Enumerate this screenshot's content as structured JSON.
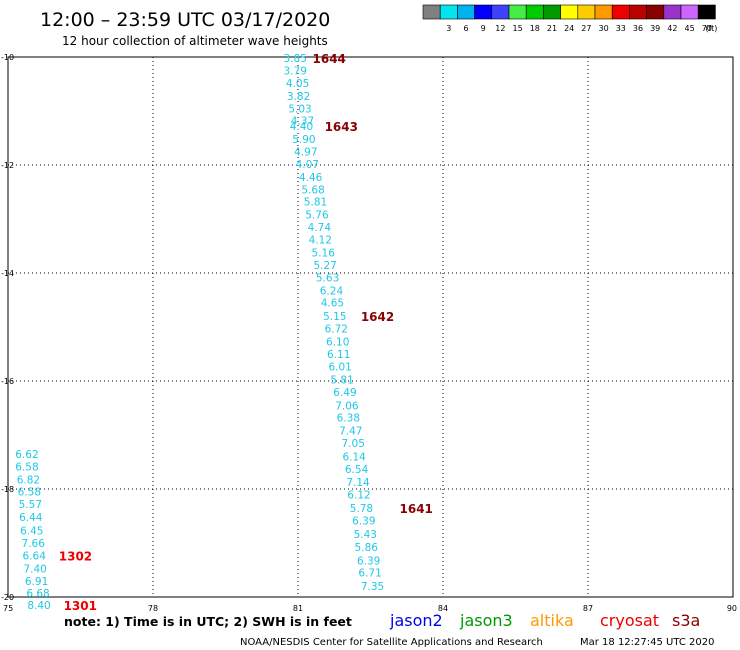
{
  "header": {
    "title": "12:00 – 23:59 UTC 03/17/2020",
    "subtitle": "12 hour collection of altimeter wave heights"
  },
  "color_legend": {
    "unit": "(ft)",
    "bins": [
      {
        "label": "",
        "color": "#808080"
      },
      {
        "label": "3",
        "color": "#00e5ee"
      },
      {
        "label": "6",
        "color": "#00b2ee"
      },
      {
        "label": "9",
        "color": "#0000ff"
      },
      {
        "label": "12",
        "color": "#4040ff"
      },
      {
        "label": "15",
        "color": "#44ee44"
      },
      {
        "label": "18",
        "color": "#00cd00"
      },
      {
        "label": "21",
        "color": "#009900"
      },
      {
        "label": "24",
        "color": "#ffff00"
      },
      {
        "label": "27",
        "color": "#ffcc00"
      },
      {
        "label": "30",
        "color": "#ff9900"
      },
      {
        "label": "33",
        "color": "#ee0000"
      },
      {
        "label": "36",
        "color": "#bb0000"
      },
      {
        "label": "39",
        "color": "#880000"
      },
      {
        "label": "42",
        "color": "#9933cc"
      },
      {
        "label": "45",
        "color": "#cc66ff"
      },
      {
        "label": "70",
        "color": "#000000"
      }
    ]
  },
  "chart_data": {
    "type": "scatter",
    "xlim": [
      75,
      90
    ],
    "ylim": [
      -20,
      -10
    ],
    "x_ticks": [
      "75",
      "78",
      "81",
      "84",
      "87",
      "90"
    ],
    "y_ticks": [
      "-10",
      "-12",
      "-14",
      "-16",
      "-18",
      "-20"
    ],
    "x_tick_values": [
      75,
      78,
      81,
      84,
      87,
      90
    ],
    "y_tick_values": [
      -10,
      -12,
      -14,
      -16,
      -18,
      -20
    ],
    "grid": true,
    "points": [
      {
        "lon": 80.7,
        "lat": -10.02,
        "label": "3.85"
      },
      {
        "lon": 80.7,
        "lat": -10.25,
        "label": "3.79"
      },
      {
        "lon": 80.75,
        "lat": -10.48,
        "label": "4.05"
      },
      {
        "lon": 80.77,
        "lat": -10.72,
        "label": "3.82"
      },
      {
        "lon": 80.8,
        "lat": -10.95,
        "label": "5.03"
      },
      {
        "lon": 80.85,
        "lat": -11.18,
        "label": "4.37"
      },
      {
        "lon": 80.83,
        "lat": -11.28,
        "label": "4.40"
      },
      {
        "lon": 80.88,
        "lat": -11.52,
        "label": "5.90"
      },
      {
        "lon": 80.92,
        "lat": -11.75,
        "label": "4.97"
      },
      {
        "lon": 80.95,
        "lat": -11.98,
        "label": "4.07"
      },
      {
        "lon": 81.02,
        "lat": -12.22,
        "label": "4.46"
      },
      {
        "lon": 81.07,
        "lat": -12.45,
        "label": "5.68"
      },
      {
        "lon": 81.12,
        "lat": -12.68,
        "label": "5.81"
      },
      {
        "lon": 81.15,
        "lat": -12.92,
        "label": "5.76"
      },
      {
        "lon": 81.2,
        "lat": -13.15,
        "label": "4.74"
      },
      {
        "lon": 81.22,
        "lat": -13.38,
        "label": "4.12"
      },
      {
        "lon": 81.28,
        "lat": -13.62,
        "label": "5.16"
      },
      {
        "lon": 81.32,
        "lat": -13.85,
        "label": "5.27"
      },
      {
        "lon": 81.37,
        "lat": -14.08,
        "label": "5.63"
      },
      {
        "lon": 81.45,
        "lat": -14.32,
        "label": "6.24"
      },
      {
        "lon": 81.47,
        "lat": -14.55,
        "label": "4.65"
      },
      {
        "lon": 81.52,
        "lat": -14.8,
        "label": "5.15"
      },
      {
        "lon": 81.55,
        "lat": -15.03,
        "label": "6.72"
      },
      {
        "lon": 81.58,
        "lat": -15.27,
        "label": "6.10"
      },
      {
        "lon": 81.6,
        "lat": -15.5,
        "label": "6.11"
      },
      {
        "lon": 81.63,
        "lat": -15.73,
        "label": "6.01"
      },
      {
        "lon": 81.67,
        "lat": -15.97,
        "label": "5.81"
      },
      {
        "lon": 81.73,
        "lat": -16.2,
        "label": "6.49"
      },
      {
        "lon": 81.77,
        "lat": -16.45,
        "label": "7.06"
      },
      {
        "lon": 81.8,
        "lat": -16.68,
        "label": "6.38"
      },
      {
        "lon": 81.85,
        "lat": -16.92,
        "label": "7.47"
      },
      {
        "lon": 81.9,
        "lat": -17.15,
        "label": "7.05"
      },
      {
        "lon": 81.92,
        "lat": -17.4,
        "label": "6.14"
      },
      {
        "lon": 81.97,
        "lat": -17.63,
        "label": "6.54"
      },
      {
        "lon": 82.0,
        "lat": -17.87,
        "label": "7.14"
      },
      {
        "lon": 82.02,
        "lat": -18.1,
        "label": "6.12"
      },
      {
        "lon": 82.07,
        "lat": -18.35,
        "label": "5.78"
      },
      {
        "lon": 82.12,
        "lat": -18.58,
        "label": "6.39"
      },
      {
        "lon": 82.15,
        "lat": -18.83,
        "label": "5.43"
      },
      {
        "lon": 82.17,
        "lat": -19.07,
        "label": "5.86"
      },
      {
        "lon": 82.22,
        "lat": -19.32,
        "label": "6.39"
      },
      {
        "lon": 82.25,
        "lat": -19.55,
        "label": "6.71"
      },
      {
        "lon": 82.3,
        "lat": -19.8,
        "label": "7.35"
      },
      {
        "lon": 75.15,
        "lat": -17.35,
        "label": "6.62"
      },
      {
        "lon": 75.15,
        "lat": -17.58,
        "label": "6.58"
      },
      {
        "lon": 75.18,
        "lat": -17.82,
        "label": "6.82"
      },
      {
        "lon": 75.2,
        "lat": -18.05,
        "label": "6.58"
      },
      {
        "lon": 75.22,
        "lat": -18.28,
        "label": "5.57"
      },
      {
        "lon": 75.23,
        "lat": -18.52,
        "label": "6.44"
      },
      {
        "lon": 75.25,
        "lat": -18.77,
        "label": "6.45"
      },
      {
        "lon": 75.28,
        "lat": -19.0,
        "label": "7.66"
      },
      {
        "lon": 75.3,
        "lat": -19.23,
        "label": "6.64"
      },
      {
        "lon": 75.32,
        "lat": -19.47,
        "label": "7.40"
      },
      {
        "lon": 75.35,
        "lat": -19.7,
        "label": "6.91"
      },
      {
        "lon": 75.38,
        "lat": -19.93,
        "label": "6.68"
      },
      {
        "lon": 75.4,
        "lat": -20.15,
        "label": "8.40"
      }
    ],
    "track_labels": [
      {
        "lon": 81.3,
        "lat": -10.02,
        "label": "1644",
        "color": "#8b0000"
      },
      {
        "lon": 81.55,
        "lat": -11.28,
        "label": "1643",
        "color": "#8b0000"
      },
      {
        "lon": 82.3,
        "lat": -14.8,
        "label": "1642",
        "color": "#8b0000"
      },
      {
        "lon": 83.1,
        "lat": -18.35,
        "label": "1641",
        "color": "#8b0000"
      },
      {
        "lon": 76.05,
        "lat": -19.23,
        "label": "1302",
        "color": "#ee0000"
      },
      {
        "lon": 76.15,
        "lat": -20.15,
        "label": "1301",
        "color": "#ee0000"
      }
    ]
  },
  "footer": {
    "note": "note: 1) Time is in UTC; 2) SWH is in feet",
    "satellites": [
      {
        "name": "jason2",
        "color": "#0000ee"
      },
      {
        "name": "jason3",
        "color": "#009900"
      },
      {
        "name": "altika",
        "color": "#ff9900"
      },
      {
        "name": "cryosat",
        "color": "#ee0000"
      },
      {
        "name": "s3a",
        "color": "#8b0000"
      }
    ],
    "credit": "NOAA/NESDIS Center for Satellite Applications and Research",
    "timestamp": "Mar 18 12:27:45 UTC 2020"
  }
}
